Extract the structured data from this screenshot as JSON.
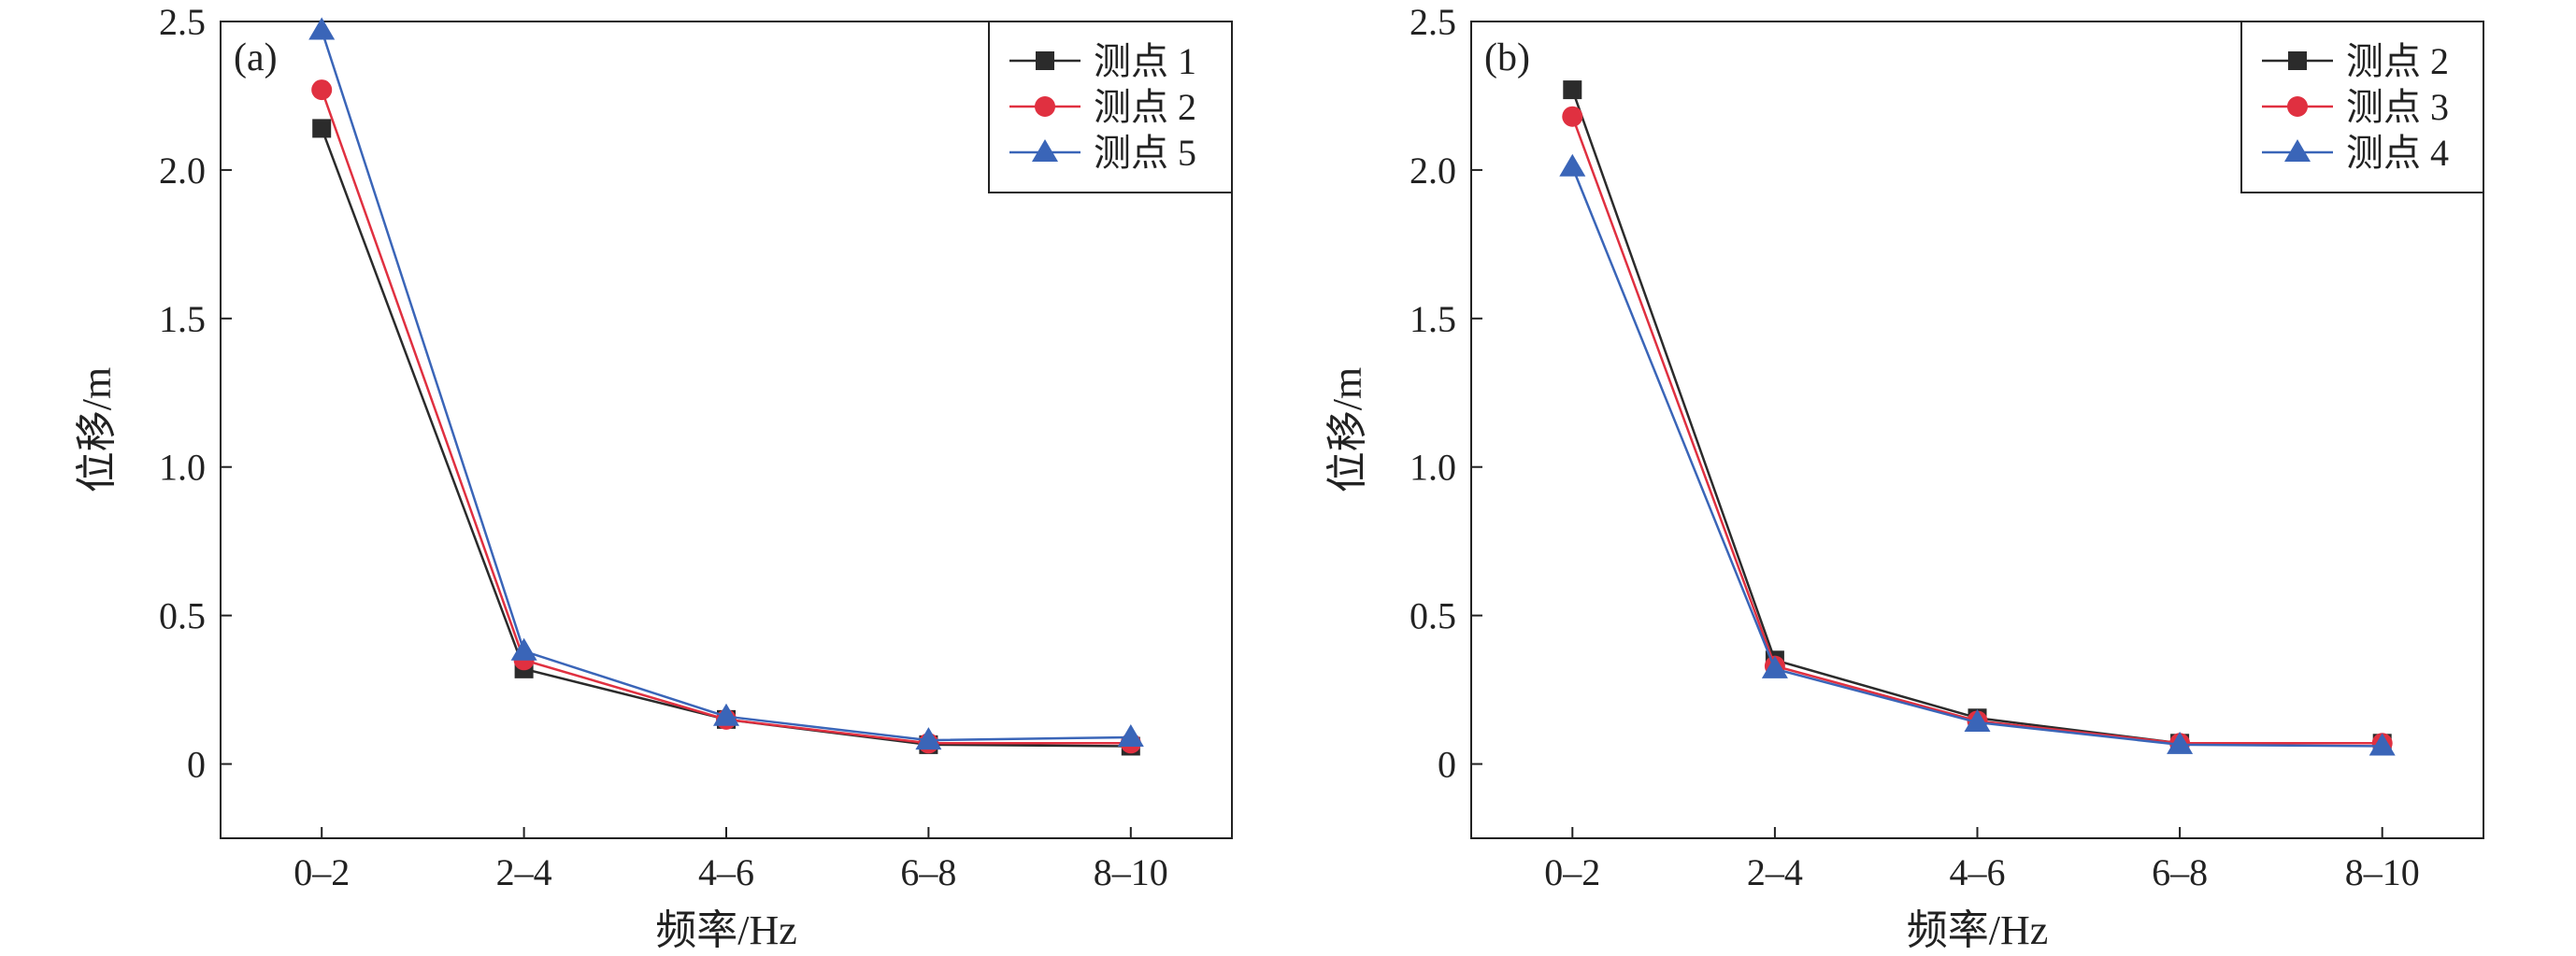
{
  "chart_data": [
    {
      "type": "line",
      "panel_label": "(a)",
      "categories": [
        "0–2",
        "2–4",
        "4–6",
        "6–8",
        "8–10"
      ],
      "xlabel": "频率/Hz",
      "ylabel": "位移/m",
      "ylim": [
        -0.25,
        2.5
      ],
      "yticks": [
        0,
        0.5,
        1.0,
        1.5,
        2.0,
        2.5
      ],
      "ytick_labels": [
        "0",
        "0.5",
        "1.0",
        "1.5",
        "2.0",
        "2.5"
      ],
      "grid": false,
      "legend_position": "top-right",
      "series": [
        {
          "name": "测点 1",
          "marker": "square",
          "color": "#2b2b2b",
          "values": [
            2.14,
            0.32,
            0.15,
            0.065,
            0.06
          ]
        },
        {
          "name": "测点 2",
          "marker": "circle",
          "color": "#e03040",
          "values": [
            2.27,
            0.35,
            0.15,
            0.07,
            0.07
          ]
        },
        {
          "name": "测点 5",
          "marker": "triangle",
          "color": "#3a65b8",
          "values": [
            2.47,
            0.38,
            0.16,
            0.08,
            0.09
          ]
        }
      ]
    },
    {
      "type": "line",
      "panel_label": "(b)",
      "categories": [
        "0–2",
        "2–4",
        "4–6",
        "6–8",
        "8–10"
      ],
      "xlabel": "频率/Hz",
      "ylabel": "位移/m",
      "ylim": [
        -0.25,
        2.5
      ],
      "yticks": [
        0,
        0.5,
        1.0,
        1.5,
        2.0,
        2.5
      ],
      "ytick_labels": [
        "0",
        "0.5",
        "1.0",
        "1.5",
        "2.0",
        "2.5"
      ],
      "grid": false,
      "legend_position": "top-right",
      "series": [
        {
          "name": "测点 2",
          "marker": "square",
          "color": "#2b2b2b",
          "values": [
            2.27,
            0.35,
            0.155,
            0.07,
            0.07
          ]
        },
        {
          "name": "测点 3",
          "marker": "circle",
          "color": "#e03040",
          "values": [
            2.18,
            0.33,
            0.145,
            0.07,
            0.07
          ]
        },
        {
          "name": "测点 4",
          "marker": "triangle",
          "color": "#3a65b8",
          "values": [
            2.01,
            0.32,
            0.14,
            0.065,
            0.06
          ]
        }
      ]
    }
  ]
}
